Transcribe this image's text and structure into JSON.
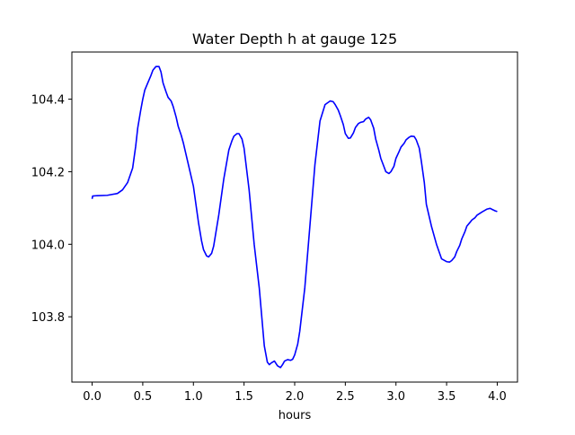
{
  "chart_data": {
    "type": "line",
    "title": "Water Depth h at gauge 125",
    "xlabel": "hours",
    "ylabel": "",
    "xlim": [
      -0.2,
      4.2
    ],
    "ylim": [
      103.62,
      104.53
    ],
    "xticks": [
      0.0,
      0.5,
      1.0,
      1.5,
      2.0,
      2.5,
      3.0,
      3.5,
      4.0
    ],
    "xtick_labels": [
      "0.0",
      "0.5",
      "1.0",
      "1.5",
      "2.0",
      "2.5",
      "3.0",
      "3.5",
      "4.0"
    ],
    "yticks": [
      103.8,
      104.0,
      104.2,
      104.4
    ],
    "ytick_labels": [
      "103.8",
      "104.0",
      "104.2",
      "104.4"
    ],
    "grid": false,
    "series": [
      {
        "color": "#0000ff",
        "x": [
          0.0,
          0.005,
          0.05,
          0.15,
          0.25,
          0.3,
          0.35,
          0.4,
          0.43,
          0.45,
          0.48,
          0.5,
          0.52,
          0.55,
          0.58,
          0.6,
          0.63,
          0.66,
          0.68,
          0.7,
          0.73,
          0.75,
          0.78,
          0.8,
          0.83,
          0.85,
          0.88,
          0.9,
          0.95,
          1.0,
          1.05,
          1.08,
          1.1,
          1.13,
          1.15,
          1.18,
          1.2,
          1.25,
          1.3,
          1.35,
          1.38,
          1.4,
          1.43,
          1.45,
          1.48,
          1.5,
          1.55,
          1.6,
          1.65,
          1.7,
          1.73,
          1.75,
          1.77,
          1.8,
          1.83,
          1.86,
          1.88,
          1.9,
          1.93,
          1.96,
          1.98,
          2.0,
          2.03,
          2.05,
          2.1,
          2.15,
          2.2,
          2.25,
          2.3,
          2.35,
          2.38,
          2.4,
          2.43,
          2.45,
          2.48,
          2.5,
          2.53,
          2.55,
          2.58,
          2.6,
          2.63,
          2.65,
          2.68,
          2.7,
          2.73,
          2.75,
          2.78,
          2.8,
          2.83,
          2.85,
          2.88,
          2.9,
          2.93,
          2.95,
          2.98,
          3.0,
          3.03,
          3.05,
          3.08,
          3.1,
          3.13,
          3.15,
          3.18,
          3.2,
          3.23,
          3.25,
          3.28,
          3.3,
          3.35,
          3.4,
          3.45,
          3.5,
          3.53,
          3.55,
          3.58,
          3.6,
          3.63,
          3.65,
          3.68,
          3.7,
          3.73,
          3.75,
          3.78,
          3.8,
          3.85,
          3.9,
          3.93,
          3.95,
          3.98,
          4.0
        ],
        "y": [
          104.125,
          104.133,
          104.134,
          104.135,
          104.14,
          104.15,
          104.17,
          104.21,
          104.27,
          104.32,
          104.37,
          104.4,
          104.425,
          104.445,
          104.465,
          104.48,
          104.49,
          104.49,
          104.475,
          104.445,
          104.42,
          104.405,
          104.395,
          104.38,
          104.35,
          104.325,
          104.3,
          104.28,
          104.22,
          104.16,
          104.06,
          104.01,
          103.985,
          103.968,
          103.965,
          103.975,
          103.995,
          104.08,
          104.18,
          104.26,
          104.285,
          104.298,
          104.305,
          104.305,
          104.29,
          104.265,
          104.15,
          104.0,
          103.88,
          103.72,
          103.675,
          103.668,
          103.673,
          103.678,
          103.665,
          103.66,
          103.668,
          103.678,
          103.682,
          103.68,
          103.683,
          103.695,
          103.725,
          103.76,
          103.88,
          104.05,
          104.22,
          104.34,
          104.385,
          104.395,
          104.393,
          104.385,
          104.37,
          104.355,
          104.33,
          104.305,
          104.292,
          104.293,
          104.307,
          104.322,
          104.333,
          104.336,
          104.338,
          104.345,
          104.35,
          104.343,
          104.32,
          104.29,
          104.26,
          104.237,
          104.215,
          104.2,
          104.195,
          104.2,
          104.215,
          104.237,
          104.255,
          104.268,
          104.278,
          104.288,
          104.295,
          104.298,
          104.297,
          104.288,
          104.265,
          104.23,
          104.17,
          104.11,
          104.05,
          104.0,
          103.96,
          103.952,
          103.951,
          103.955,
          103.965,
          103.98,
          103.997,
          104.015,
          104.034,
          104.05,
          104.06,
          104.067,
          104.073,
          104.08,
          104.089,
          104.097,
          104.099,
          104.096,
          104.092,
          104.09
        ]
      }
    ]
  }
}
